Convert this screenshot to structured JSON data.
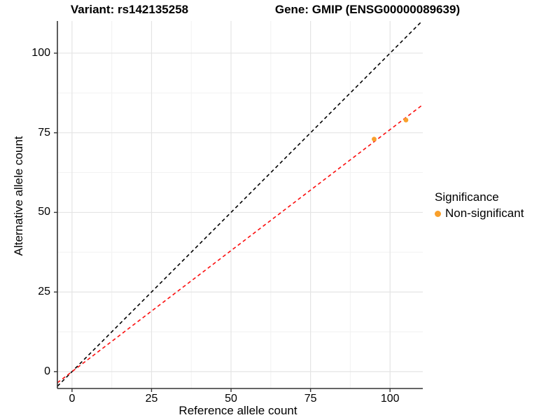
{
  "titles": {
    "left": "Variant: rs142135258",
    "right": "Gene: GMIP (ENSG00000089639)"
  },
  "chart_data": {
    "type": "scatter",
    "xlabel": "Reference allele count",
    "ylabel": "Alternative allele count",
    "xlim": [
      -4.6,
      110.3
    ],
    "ylim": [
      -5.3,
      110.1
    ],
    "xticks": [
      0,
      25,
      50,
      75,
      100
    ],
    "yticks": [
      0,
      25,
      50,
      75,
      100
    ],
    "xminor": [
      12.5,
      37.5,
      62.5,
      87.5
    ],
    "yminor": [
      12.5,
      37.5,
      62.5,
      87.5
    ],
    "grid": true,
    "lines": [
      {
        "name": "identity-line",
        "slope": 1,
        "intercept": 0,
        "color": "#000000",
        "style": "dashed"
      },
      {
        "name": "expected-ratio-line",
        "slope": 0.76,
        "intercept": 0,
        "color": "#FB0E0E",
        "style": "dashed"
      }
    ],
    "points": [
      {
        "x": 95,
        "y": 73,
        "series": "Non-significant"
      },
      {
        "x": 105,
        "y": 79,
        "series": "Non-significant"
      }
    ],
    "point_color": "#F9A02B",
    "legend": {
      "title": "Significance",
      "position": "right",
      "items": [
        {
          "label": "Non-significant",
          "color": "#F9A02B"
        }
      ]
    },
    "colors": {
      "grid_major": "#E4E4E4",
      "grid_minor": "#F2F2F2",
      "axis_line": "#333333",
      "background": "#FFFFFF"
    }
  }
}
